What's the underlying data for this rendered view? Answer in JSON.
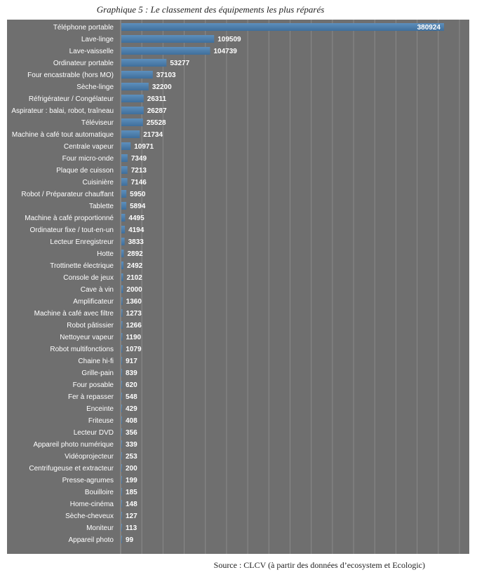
{
  "title": "Graphique 5 :  Le classement des équipements les plus réparés",
  "source": "Source : CLCV (à partir des données d’ecosystem et Ecologic)",
  "colors": {
    "background": "#6f6f6f",
    "bar": "#3f6e9b",
    "bar_highlight": "#5d8fbd",
    "label": "#ffffff",
    "grid": "#8a8a8a"
  },
  "chart_data": {
    "type": "bar",
    "orientation": "horizontal",
    "grid": true,
    "xlim": [
      0,
      400000
    ],
    "categories": [
      "Téléphone portable",
      "Lave-linge",
      "Lave-vaisselle",
      "Ordinateur portable",
      "Four encastrable (hors MO)",
      "Sèche-linge",
      "Réfrigérateur / Congélateur",
      "Aspirateur : balai, robot, traîneau",
      "Téléviseur",
      "Machine à café tout automatique",
      "Centrale vapeur",
      "Four micro-onde",
      "Plaque de cuisson",
      "Cuisinière",
      "Robot / Préparateur chauffant",
      "Tablette",
      "Machine à café proportionné",
      "Ordinateur fixe / tout-en-un",
      "Lecteur Enregistreur",
      "Hotte",
      "Trottinette électrique",
      "Console de jeux",
      "Cave à vin",
      "Amplificateur",
      "Machine à café avec filtre",
      "Robot pâtissier",
      "Nettoyeur vapeur",
      "Robot multifonctions",
      "Chaine hi-fi",
      "Grille-pain",
      "Four posable",
      "Fer à repasser",
      "Enceinte",
      "Friteuse",
      "Lecteur DVD",
      "Appareil photo numérique",
      "Vidéoprojecteur",
      "Centrifugeuse et extracteur",
      "Presse-agrumes",
      "Bouilloire",
      "Home-cinéma",
      "Sèche-cheveux",
      "Moniteur",
      "Appareil photo"
    ],
    "values": [
      380924,
      109509,
      104739,
      53277,
      37103,
      32200,
      26311,
      26287,
      25528,
      21734,
      10971,
      7349,
      7213,
      7146,
      5950,
      5894,
      4495,
      4194,
      3833,
      2892,
      2492,
      2102,
      2000,
      1360,
      1273,
      1266,
      1190,
      1079,
      917,
      839,
      620,
      548,
      429,
      408,
      356,
      339,
      253,
      200,
      199,
      185,
      148,
      127,
      113,
      99
    ],
    "value_labels": [
      "380924",
      "109509",
      "104739",
      "53277",
      "37103",
      "32200",
      "26311",
      "26287",
      "25528",
      "21734",
      "10971",
      "7349",
      "7213",
      "7146",
      "5950",
      "5894",
      "4495",
      "4194",
      "3833",
      "2892",
      "2492",
      "2102",
      "2000",
      "1360",
      "1273",
      "1266",
      "1190",
      "1079",
      "917",
      "839",
      "620",
      "548",
      "429",
      "408",
      "356",
      "339",
      "253",
      "200",
      "199",
      "185",
      "148",
      "127",
      "113",
      "99"
    ]
  }
}
